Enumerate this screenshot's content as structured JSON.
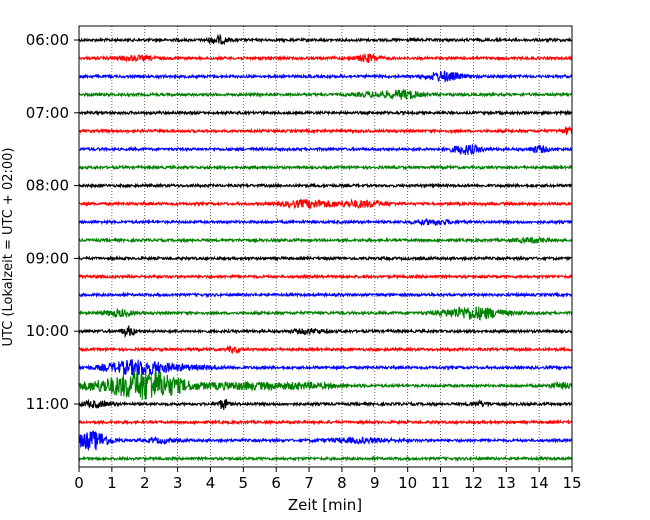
{
  "chart_data": {
    "type": "line",
    "title": "",
    "xlabel": "Zeit  [min]",
    "ylabel": "UTC (Lokalzeit = UTC + 02:00)",
    "xlim": [
      0,
      15
    ],
    "x_ticks": [
      0,
      1,
      2,
      3,
      4,
      5,
      6,
      7,
      8,
      9,
      10,
      11,
      12,
      13,
      14,
      15
    ],
    "y_tick_labels": [
      "06:00",
      "07:00",
      "08:00",
      "09:00",
      "10:00",
      "11:00"
    ],
    "grid": "vertical dotted lines at each minute",
    "trace_interval_min": 15,
    "trace_color_cycle": [
      "#000000",
      "#ff0000",
      "#0000ff",
      "#008000"
    ],
    "traces": [
      {
        "start": "06:00",
        "bursts": [
          {
            "t": 4.25,
            "amp": 3.5,
            "dur": 0.3
          }
        ]
      },
      {
        "start": "06:15",
        "bursts": [
          {
            "t": 1.7,
            "amp": 2.0,
            "dur": 0.6
          },
          {
            "t": 8.8,
            "amp": 3.5,
            "dur": 0.35
          }
        ]
      },
      {
        "start": "06:30",
        "bursts": [
          {
            "t": 11.1,
            "amp": 4.5,
            "dur": 0.5
          }
        ]
      },
      {
        "start": "06:45",
        "bursts": [
          {
            "t": 9.0,
            "amp": 2.0,
            "dur": 0.6
          },
          {
            "t": 9.9,
            "amp": 4.0,
            "dur": 0.45
          }
        ]
      },
      {
        "start": "07:00",
        "bursts": []
      },
      {
        "start": "07:15",
        "bursts": [
          {
            "t": 14.9,
            "amp": 3.0,
            "dur": 0.2
          }
        ]
      },
      {
        "start": "07:30",
        "bursts": [
          {
            "t": 11.8,
            "amp": 4.5,
            "dur": 0.45
          },
          {
            "t": 14.0,
            "amp": 3.0,
            "dur": 0.3
          }
        ]
      },
      {
        "start": "07:45",
        "bursts": []
      },
      {
        "start": "08:00",
        "bursts": []
      },
      {
        "start": "08:15",
        "bursts": [
          {
            "t": 7.0,
            "amp": 3.5,
            "dur": 0.8
          },
          {
            "t": 8.6,
            "amp": 3.0,
            "dur": 0.7
          }
        ]
      },
      {
        "start": "08:30",
        "bursts": [
          {
            "t": 10.8,
            "amp": 2.0,
            "dur": 0.6
          }
        ]
      },
      {
        "start": "08:45",
        "bursts": [
          {
            "t": 13.8,
            "amp": 2.0,
            "dur": 0.5
          }
        ]
      },
      {
        "start": "09:00",
        "bursts": []
      },
      {
        "start": "09:15",
        "bursts": []
      },
      {
        "start": "09:30",
        "bursts": []
      },
      {
        "start": "09:45",
        "bursts": [
          {
            "t": 1.2,
            "amp": 3.0,
            "dur": 0.4
          },
          {
            "t": 12.0,
            "amp": 6.0,
            "dur": 0.9
          }
        ]
      },
      {
        "start": "10:00",
        "bursts": [
          {
            "t": 1.5,
            "amp": 4.5,
            "dur": 0.2
          },
          {
            "t": 7.0,
            "amp": 2.0,
            "dur": 0.5
          }
        ]
      },
      {
        "start": "10:15",
        "bursts": [
          {
            "t": 4.7,
            "amp": 2.5,
            "dur": 0.2
          }
        ]
      },
      {
        "start": "10:30",
        "bursts": [
          {
            "t": 1.7,
            "amp": 6.5,
            "dur": 0.9
          },
          {
            "t": 3.0,
            "amp": 2.0,
            "dur": 1.2
          }
        ]
      },
      {
        "start": "10:45",
        "bursts": [
          {
            "t": 1.5,
            "amp": 7.0,
            "dur": 1.5
          },
          {
            "t": 2.2,
            "amp": 9.0,
            "dur": 0.9
          },
          {
            "t": 5.0,
            "amp": 3.0,
            "dur": 1.5
          },
          {
            "t": 7.0,
            "amp": 2.0,
            "dur": 1.0
          },
          {
            "t": 14.7,
            "amp": 2.5,
            "dur": 0.4
          }
        ]
      },
      {
        "start": "11:00",
        "bursts": [
          {
            "t": 0.5,
            "amp": 3.0,
            "dur": 0.4
          },
          {
            "t": 4.4,
            "amp": 5.0,
            "dur": 0.15
          },
          {
            "t": 12.2,
            "amp": 2.0,
            "dur": 0.3
          }
        ]
      },
      {
        "start": "11:15",
        "bursts": []
      },
      {
        "start": "11:30",
        "bursts": [
          {
            "t": 0.4,
            "amp": 9.0,
            "dur": 0.5
          },
          {
            "t": 2.5,
            "amp": 2.0,
            "dur": 0.4
          },
          {
            "t": 8.5,
            "amp": 2.0,
            "dur": 1.0
          }
        ]
      },
      {
        "start": "11:45",
        "bursts": []
      }
    ]
  }
}
